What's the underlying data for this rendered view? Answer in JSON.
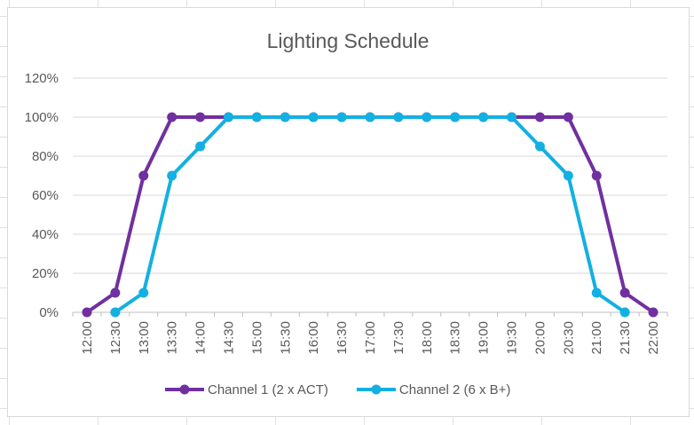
{
  "chart_data": {
    "type": "line",
    "title": "Lighting Schedule",
    "xlabel": "",
    "ylabel": "",
    "categories": [
      "12:00",
      "12:30",
      "13:00",
      "13:30",
      "14:00",
      "14:30",
      "15:00",
      "15:30",
      "16:00",
      "16:30",
      "17:00",
      "17:30",
      "18:00",
      "18:30",
      "19:00",
      "19:30",
      "20:00",
      "20:30",
      "21:00",
      "21:30",
      "22:00"
    ],
    "yticks": [
      "0%",
      "20%",
      "40%",
      "60%",
      "80%",
      "100%",
      "120%"
    ],
    "ylim": [
      0,
      120
    ],
    "grid": true,
    "legend_position": "bottom",
    "series": [
      {
        "name": "Channel 1 (2 x ACT)",
        "color": "#7030a0",
        "values": [
          0,
          10,
          70,
          100,
          100,
          100,
          100,
          100,
          100,
          100,
          100,
          100,
          100,
          100,
          100,
          100,
          100,
          100,
          70,
          10,
          0
        ]
      },
      {
        "name": "Channel 2 (6 x B+)",
        "color": "#13b0e2",
        "values": [
          null,
          0,
          10,
          70,
          85,
          100,
          100,
          100,
          100,
          100,
          100,
          100,
          100,
          100,
          100,
          100,
          85,
          70,
          10,
          0,
          null
        ]
      }
    ]
  }
}
